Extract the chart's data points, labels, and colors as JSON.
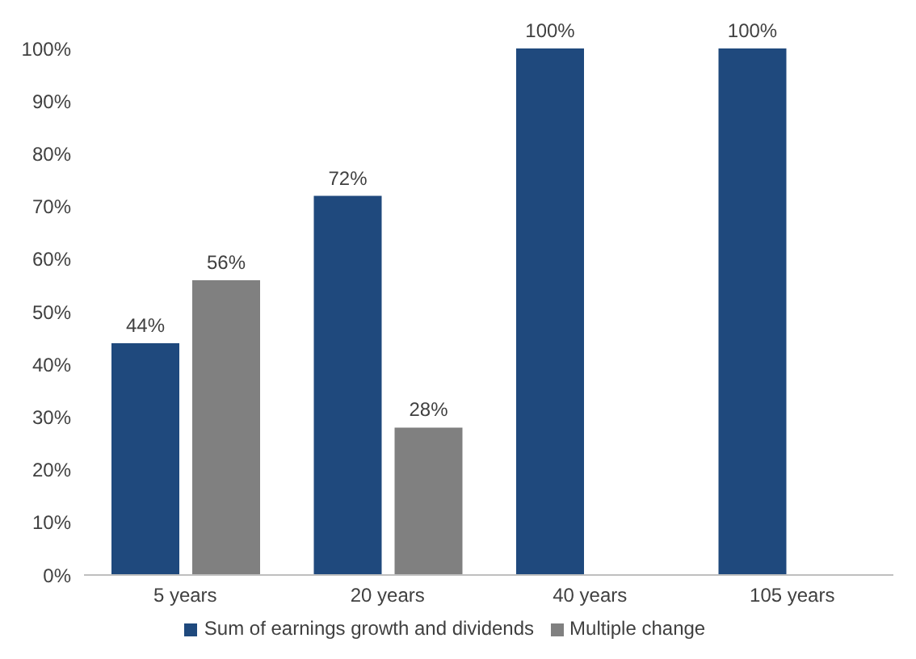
{
  "chart_data": {
    "type": "bar",
    "categories": [
      "5 years",
      "20 years",
      "40 years",
      "105 years"
    ],
    "series": [
      {
        "name": "Sum of earnings growth and dividends",
        "color": "#1f497d",
        "values": [
          44,
          72,
          100,
          100
        ],
        "value_labels": [
          "44%",
          "72%",
          "100%",
          "100%"
        ]
      },
      {
        "name": "Multiple change",
        "color": "#808080",
        "values": [
          56,
          28,
          null,
          null
        ],
        "value_labels": [
          "56%",
          "28%",
          null,
          null
        ]
      }
    ],
    "ylim": [
      0,
      100
    ],
    "yticks": [
      {
        "value": 0,
        "label": "0%"
      },
      {
        "value": 10,
        "label": "10%"
      },
      {
        "value": 20,
        "label": "20%"
      },
      {
        "value": 30,
        "label": "30%"
      },
      {
        "value": 40,
        "label": "40%"
      },
      {
        "value": 50,
        "label": "50%"
      },
      {
        "value": 60,
        "label": "60%"
      },
      {
        "value": 70,
        "label": "70%"
      },
      {
        "value": 80,
        "label": "80%"
      },
      {
        "value": 90,
        "label": "90%"
      },
      {
        "value": 100,
        "label": "100%"
      }
    ],
    "grid": false,
    "legend": "bottom"
  }
}
